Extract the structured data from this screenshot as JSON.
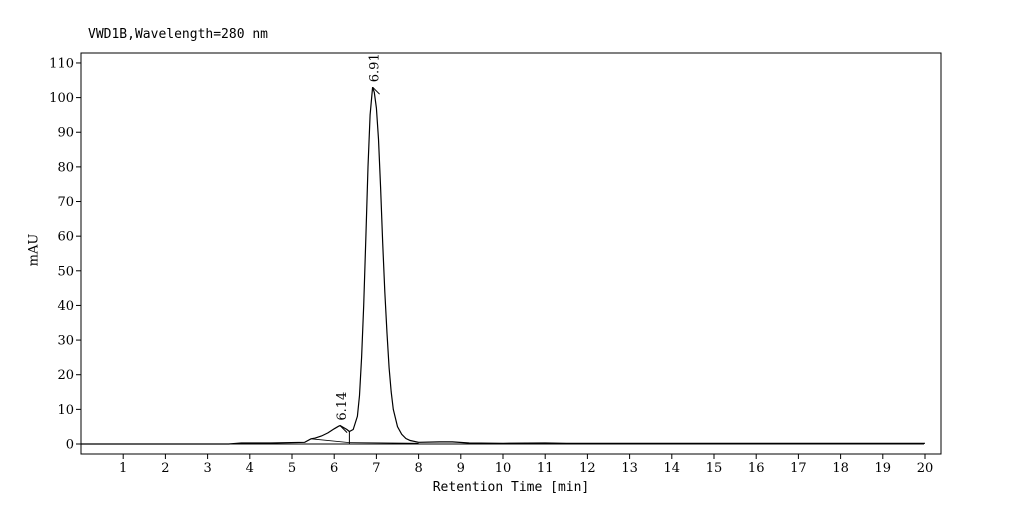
{
  "chart_data": {
    "type": "line",
    "title": "VWD1B,Wavelength=280 nm",
    "xlabel": "Retention Time [min]",
    "ylabel": "mAU",
    "xlim": [
      0,
      20
    ],
    "ylim": [
      -2,
      112
    ],
    "x_ticks": [
      1,
      2,
      3,
      4,
      5,
      6,
      7,
      8,
      9,
      10,
      11,
      12,
      13,
      14,
      15,
      16,
      17,
      18,
      19,
      20
    ],
    "y_ticks": [
      0,
      10,
      20,
      30,
      40,
      50,
      60,
      70,
      80,
      90,
      100,
      110
    ],
    "grid": false,
    "series": [
      {
        "x": [
          0,
          3.5,
          3.8,
          4.5,
          5.3,
          5.45,
          5.55,
          5.7,
          5.85,
          6.0,
          6.1,
          6.14,
          6.2,
          6.3,
          6.36,
          6.45,
          6.55,
          6.6,
          6.65,
          6.7,
          6.75,
          6.8,
          6.85,
          6.91,
          6.95,
          7.0,
          7.05,
          7.1,
          7.15,
          7.2,
          7.25,
          7.3,
          7.35,
          7.4,
          7.5,
          7.6,
          7.7,
          7.8,
          8.0,
          8.5,
          8.8,
          9.2,
          10.0,
          11.0,
          11.5,
          20.0
        ],
        "y": [
          0,
          0,
          0.3,
          0.3,
          0.5,
          1.5,
          1.7,
          2.3,
          3.2,
          4.4,
          5.1,
          5.3,
          4.9,
          4.2,
          3.6,
          4.2,
          8,
          14,
          25,
          40,
          60,
          80,
          95,
          103,
          101.5,
          97,
          88,
          74,
          58,
          44,
          32,
          22,
          15,
          10,
          5,
          2.8,
          1.6,
          1,
          0.5,
          0.6,
          0.6,
          0.3,
          0.2,
          0.3,
          0.2,
          0.2
        ]
      }
    ],
    "peaks": [
      {
        "label": "6.14",
        "x": 6.14,
        "y": 5.3
      },
      {
        "label": "6.91",
        "x": 6.91,
        "y": 103
      }
    ],
    "baselines": [
      {
        "x": [
          5.45,
          6.36
        ],
        "y": [
          1.5,
          0.4
        ]
      },
      {
        "x": [
          6.36,
          8.0
        ],
        "y": [
          0.4,
          0.2
        ]
      }
    ]
  }
}
